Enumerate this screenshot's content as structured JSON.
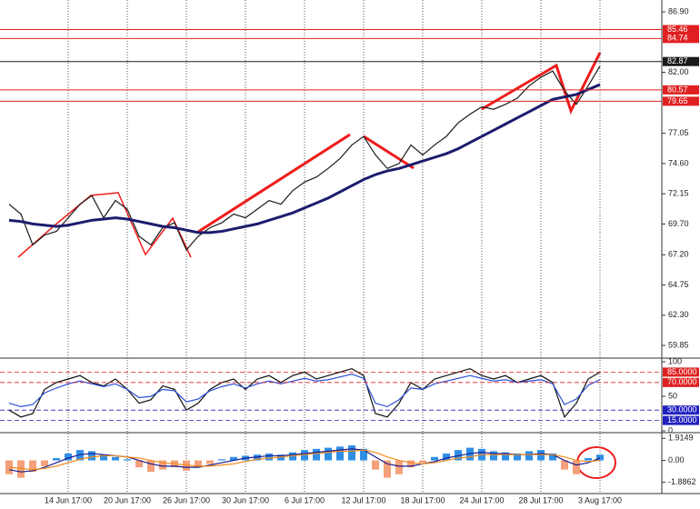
{
  "chart_data": [
    {
      "type": "line",
      "categories": [
        null,
        null,
        null,
        null,
        null,
        "14 Jun 17:00",
        null,
        null,
        null,
        null,
        "20 Jun 17:00",
        null,
        null,
        null,
        null,
        "26 Jun 17:00",
        null,
        null,
        null,
        null,
        "30 Jun 17:00",
        null,
        null,
        null,
        null,
        "6 Jul 17:00",
        null,
        null,
        null,
        null,
        "12 Jul 17:00",
        null,
        null,
        null,
        null,
        "18 Jul 17:00",
        null,
        null,
        null,
        null,
        "24 Jul 17:00",
        null,
        null,
        null,
        null,
        "28 Jul 17:00",
        null,
        null,
        null,
        null,
        "3 Aug 17:00"
      ],
      "series": [
        {
          "color": "#1a1a1a",
          "values": [
            71.3,
            70.5,
            68.0,
            68.8,
            69.1,
            70.2,
            71.3,
            72.0,
            70.2,
            71.6,
            70.9,
            68.7,
            68.0,
            69.4,
            69.8,
            67.6,
            68.7,
            69.4,
            69.8,
            70.5,
            70.2,
            70.9,
            71.6,
            71.3,
            72.4,
            73.1,
            73.5,
            74.2,
            75.0,
            76.1,
            76.8,
            75.3,
            74.2,
            74.6,
            76.1,
            75.3,
            76.1,
            76.8,
            77.9,
            78.6,
            79.2,
            79.0,
            79.4,
            79.9,
            80.9,
            81.6,
            82.1,
            80.5,
            79.4,
            80.9,
            82.5
          ]
        },
        {
          "color": "#1c1c6e",
          "values": [
            70.0,
            69.9,
            69.7,
            69.6,
            69.5,
            69.6,
            69.8,
            70.0,
            70.1,
            70.2,
            70.1,
            69.9,
            69.7,
            69.5,
            69.4,
            69.2,
            69.0,
            69.0,
            69.1,
            69.3,
            69.5,
            69.7,
            70.0,
            70.3,
            70.6,
            71.0,
            71.4,
            71.8,
            72.3,
            72.8,
            73.3,
            73.7,
            74.0,
            74.2,
            74.5,
            74.8,
            75.1,
            75.4,
            75.8,
            76.3,
            76.8,
            77.3,
            77.8,
            78.3,
            78.8,
            79.3,
            79.8,
            80.0,
            80.2,
            80.6,
            81.0
          ]
        }
      ],
      "ylim": [
        58.97,
        87.49
      ],
      "yticks": [
        {
          "value": 86.9,
          "label": "86.90"
        },
        {
          "value": 82,
          "label": "82.00"
        },
        77.05,
        {
          "value": 74.6,
          "label": "74.60"
        },
        72.15,
        {
          "value": 69.7,
          "label": "69.70"
        },
        {
          "value": 67.2,
          "label": "67.20"
        },
        64.75,
        {
          "value": 62.3,
          "label": "62.30"
        },
        59.85
      ],
      "levels": [
        {
          "value": 85.46,
          "color": "#e02020"
        },
        {
          "value": 84.74,
          "color": "#e02020"
        },
        {
          "value": 82.87,
          "color": "#1a1a1a"
        },
        {
          "value": 80.57,
          "color": "#e02020"
        },
        {
          "value": 79.65,
          "color": "#e02020"
        }
      ]
    },
    {
      "type": "line",
      "series": [
        {
          "color": "#111111",
          "values": [
            30,
            20,
            25,
            60,
            70,
            75,
            80,
            70,
            65,
            75,
            60,
            40,
            45,
            65,
            60,
            30,
            40,
            60,
            70,
            75,
            60,
            75,
            80,
            70,
            80,
            85,
            75,
            80,
            85,
            90,
            80,
            25,
            20,
            40,
            70,
            60,
            75,
            80,
            85,
            90,
            80,
            75,
            80,
            70,
            75,
            80,
            70,
            20,
            40,
            75,
            85
          ]
        },
        {
          "color": "#2b4fd8",
          "values": [
            40,
            35,
            38,
            55,
            62,
            68,
            72,
            68,
            64,
            68,
            60,
            48,
            50,
            60,
            58,
            42,
            46,
            58,
            64,
            68,
            62,
            68,
            72,
            68,
            72,
            76,
            72,
            74,
            78,
            82,
            76,
            40,
            35,
            45,
            62,
            60,
            68,
            72,
            76,
            80,
            76,
            72,
            74,
            70,
            72,
            74,
            68,
            38,
            46,
            66,
            74
          ]
        }
      ],
      "ylim": [
        0,
        100
      ],
      "yticks": [
        100,
        50,
        0
      ],
      "levels": [
        {
          "value": 85,
          "label": "85.0000",
          "color": "#e02020"
        },
        {
          "value": 70,
          "label": "70.0000",
          "color": "#e02020"
        },
        {
          "value": 30,
          "label": "30.0000",
          "color": "#2020c0"
        },
        {
          "value": 15,
          "label": "15.0000",
          "color": "#2020c0"
        }
      ]
    },
    {
      "type": "bar",
      "histogram": {
        "positive": "#2f8fe6",
        "negative": "#f4a07a",
        "values": [
          -1.2,
          -1.5,
          -1.0,
          -0.5,
          0.2,
          0.6,
          0.9,
          0.8,
          0.5,
          0.3,
          0.1,
          -0.6,
          -1.0,
          -0.8,
          -0.6,
          -0.9,
          -0.6,
          -0.3,
          0.1,
          0.3,
          0.4,
          0.5,
          0.6,
          0.5,
          0.7,
          0.9,
          1.0,
          1.1,
          1.2,
          1.3,
          1.0,
          -0.8,
          -1.5,
          -1.2,
          -0.6,
          -0.2,
          0.3,
          0.6,
          0.9,
          1.1,
          1.0,
          0.8,
          0.7,
          0.6,
          0.8,
          0.9,
          0.6,
          -0.8,
          -1.2,
          0.2,
          0.5
        ]
      },
      "series": [
        {
          "color": "#1c1c8e",
          "values": [
            -0.8,
            -1.0,
            -0.9,
            -0.6,
            -0.2,
            0.2,
            0.5,
            0.6,
            0.5,
            0.4,
            0.3,
            0.0,
            -0.3,
            -0.5,
            -0.5,
            -0.6,
            -0.6,
            -0.4,
            -0.2,
            0.0,
            0.2,
            0.3,
            0.4,
            0.4,
            0.5,
            0.6,
            0.7,
            0.8,
            0.9,
            1.0,
            0.9,
            0.3,
            -0.3,
            -0.5,
            -0.5,
            -0.3,
            -0.1,
            0.2,
            0.4,
            0.6,
            0.7,
            0.6,
            0.6,
            0.5,
            0.5,
            0.6,
            0.5,
            0.0,
            -0.4,
            -0.2,
            0.2
          ]
        },
        {
          "color": "#f08a1c",
          "values": [
            -0.6,
            -0.7,
            -0.8,
            -0.7,
            -0.5,
            -0.2,
            0.1,
            0.3,
            0.4,
            0.4,
            0.3,
            0.2,
            0.0,
            -0.2,
            -0.3,
            -0.4,
            -0.5,
            -0.5,
            -0.4,
            -0.3,
            -0.1,
            0.1,
            0.2,
            0.3,
            0.4,
            0.5,
            0.6,
            0.7,
            0.8,
            0.8,
            0.9,
            0.7,
            0.3,
            0.0,
            -0.2,
            -0.3,
            -0.2,
            0.0,
            0.2,
            0.3,
            0.5,
            0.5,
            0.5,
            0.5,
            0.5,
            0.5,
            0.5,
            0.3,
            0.0,
            -0.1,
            0.0
          ]
        }
      ],
      "ylim": [
        -2.64,
        2.25
      ],
      "yticks": [
        1.9149,
        {
          "value": 0,
          "label": "0.00"
        },
        -1.8862
      ]
    }
  ]
}
